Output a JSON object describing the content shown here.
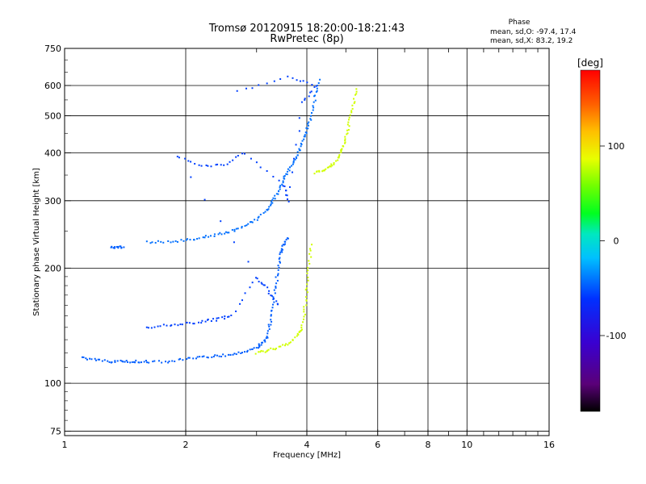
{
  "chart_data": {
    "type": "scatter",
    "title": "Tromsø 20120915 18:20:00-18:21:43",
    "subtitle": "RwPretec (8p)",
    "xlabel": "Frequency [MHz]",
    "ylabel": "Stationary phase Virtual Height [km]",
    "x_scale": "log",
    "y_scale": "log",
    "xlim": [
      1,
      16
    ],
    "ylim": [
      73,
      750
    ],
    "x_ticks": [
      1,
      2,
      4,
      6,
      8,
      10,
      16
    ],
    "y_ticks": [
      75,
      100,
      200,
      300,
      400,
      500,
      600,
      750
    ],
    "x_grid_major": [
      2,
      4,
      6,
      8,
      10
    ],
    "x_minor_ticks": [
      3,
      5,
      7,
      9,
      11,
      12,
      13,
      14,
      15
    ],
    "grid": true,
    "phase_stats": {
      "title": "Phase",
      "line_o": "mean, sd,O: -97.4, 17.4",
      "line_x": "mean, sd,X:  83.2, 19.2"
    },
    "colorbar": {
      "label": "[deg]",
      "ticks": [
        100,
        0,
        -100
      ],
      "range": [
        -180,
        180
      ],
      "colormap": "rainbow (black → purple → blue → cyan → green → yellow → red)"
    },
    "traces": [
      {
        "series": "O-mode lower trace",
        "phase": -110,
        "points": [
          [
            1.1,
            117
          ],
          [
            1.2,
            115
          ],
          [
            1.3,
            114
          ],
          [
            1.4,
            114
          ],
          [
            1.5,
            114
          ],
          [
            1.6,
            114
          ],
          [
            1.8,
            114
          ],
          [
            2.0,
            116
          ],
          [
            2.2,
            117
          ],
          [
            2.4,
            118
          ],
          [
            2.6,
            119
          ],
          [
            2.8,
            121
          ],
          [
            3.0,
            124
          ],
          [
            3.1,
            127
          ],
          [
            3.2,
            133
          ],
          [
            3.25,
            145
          ],
          [
            3.3,
            160
          ],
          [
            3.35,
            180
          ],
          [
            3.4,
            200
          ],
          [
            3.45,
            220
          ],
          [
            3.5,
            230
          ],
          [
            3.6,
            240
          ]
        ]
      },
      {
        "series": "X-mode lower trace",
        "phase": 85,
        "points": [
          [
            3.0,
            120
          ],
          [
            3.2,
            122
          ],
          [
            3.4,
            124
          ],
          [
            3.6,
            127
          ],
          [
            3.8,
            133
          ],
          [
            3.9,
            140
          ],
          [
            3.95,
            155
          ],
          [
            4.0,
            175
          ],
          [
            4.05,
            200
          ],
          [
            4.1,
            230
          ]
        ]
      },
      {
        "series": "O-mode upper trace",
        "phase": -105,
        "points": [
          [
            1.6,
            234
          ],
          [
            1.8,
            234
          ],
          [
            2.0,
            236
          ],
          [
            2.2,
            240
          ],
          [
            2.4,
            245
          ],
          [
            2.6,
            250
          ],
          [
            2.8,
            258
          ],
          [
            3.0,
            268
          ],
          [
            3.2,
            285
          ],
          [
            3.3,
            300
          ],
          [
            3.4,
            320
          ],
          [
            3.5,
            340
          ],
          [
            3.6,
            360
          ],
          [
            3.7,
            380
          ],
          [
            3.8,
            400
          ],
          [
            3.9,
            430
          ],
          [
            4.0,
            460
          ],
          [
            4.1,
            500
          ],
          [
            4.2,
            560
          ],
          [
            4.3,
            620
          ]
        ]
      },
      {
        "series": "X-mode upper trace",
        "phase": 85,
        "points": [
          [
            4.2,
            355
          ],
          [
            4.4,
            360
          ],
          [
            4.6,
            370
          ],
          [
            4.8,
            390
          ],
          [
            4.9,
            410
          ],
          [
            5.0,
            440
          ],
          [
            5.1,
            480
          ],
          [
            5.2,
            530
          ],
          [
            5.3,
            590
          ]
        ]
      },
      {
        "series": "O-mode second-hop trace",
        "phase": -110,
        "points": [
          [
            1.3,
            226
          ],
          [
            1.35,
            227
          ],
          [
            1.4,
            226
          ]
        ]
      },
      {
        "series": "O-mode scatter",
        "phase": -120,
        "points": [
          [
            1.6,
            140
          ],
          [
            1.8,
            142
          ],
          [
            2.0,
            143
          ],
          [
            2.2,
            145
          ],
          [
            2.4,
            147
          ],
          [
            2.6,
            150
          ],
          [
            3.0,
            190
          ],
          [
            3.2,
            175
          ],
          [
            3.4,
            160
          ],
          [
            1.9,
            390
          ],
          [
            2.2,
            370
          ],
          [
            2.5,
            372
          ],
          [
            2.8,
            400
          ],
          [
            3.5,
            330
          ],
          [
            3.6,
            300
          ],
          [
            3.9,
            540
          ],
          [
            4.2,
            600
          ],
          [
            3.6,
            630
          ],
          [
            2.7,
            580
          ]
        ]
      }
    ]
  }
}
